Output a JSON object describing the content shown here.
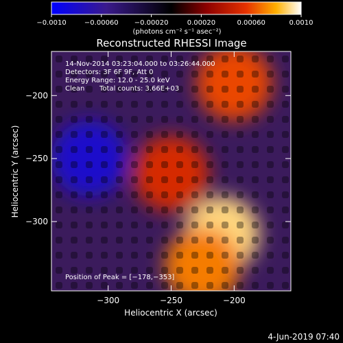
{
  "chart_data": {
    "type": "heatmap",
    "title": "Reconstructed RHESSI Image",
    "xlabel": "Heliocentric X (arcsec)",
    "ylabel": "Heliocentric Y (arcsec)",
    "xlim": [
      -345,
      -155
    ],
    "ylim": [
      -355,
      -165
    ],
    "x_ticks": [
      -300,
      -250,
      -200
    ],
    "x_tick_labels": [
      "−300",
      "−250",
      "−200"
    ],
    "y_ticks": [
      -200,
      -250,
      -300
    ],
    "y_tick_labels": [
      "−200",
      "−250",
      "−300"
    ],
    "colorbar": {
      "min": -0.001,
      "max": 0.001,
      "ticks": [
        -0.001,
        -0.0006,
        -0.0002,
        0.0002,
        0.0006,
        0.001
      ],
      "tick_labels": [
        "−0.0010",
        "−0.00060",
        "−0.00020",
        "0.00020",
        "0.00060",
        "0.0010"
      ],
      "units_label": "(photons cm⁻² s⁻¹ asec⁻²)",
      "colormap": [
        "#0000ff",
        "#3a1a8c",
        "#000000",
        "#8c0000",
        "#e63200",
        "#ffb000",
        "#ffffff"
      ]
    },
    "annotations": {
      "time_range": "14-Nov-2014 03:23:04.000 to 03:26:44.000",
      "detectors": "Detectors: 3F 6F 9F, Att 0",
      "energy_range": "Energy Range: 12.0 - 25.0 keV",
      "method": "Clean",
      "total_counts": "Total counts: 3.66E+03",
      "peak_position": "Position of Peak = [−178,−353]"
    },
    "regions": [
      {
        "x": -315,
        "y": -250,
        "level": -0.0008,
        "desc": "negative blue region"
      },
      {
        "x": -250,
        "y": -262,
        "level": 0.0005
      },
      {
        "x": -210,
        "y": -310,
        "level": 0.0009
      },
      {
        "x": -200,
        "y": -190,
        "level": 0.0006
      },
      {
        "x": -225,
        "y": -335,
        "level": 0.0007
      }
    ]
  },
  "footer": {
    "date_stamp": "4-Jun-2019 07:40"
  }
}
